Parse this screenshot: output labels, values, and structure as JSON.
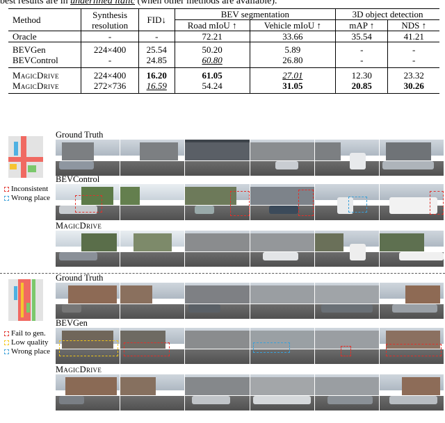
{
  "caption": {
    "text_pre": "best results are in ",
    "text_ul": "underlined italic",
    "text_post": " (when other methods are available)."
  },
  "table": {
    "headers": {
      "method": "Method",
      "synth_line1": "Synthesis",
      "synth_line2": "resolution",
      "fid": "FID↓",
      "bev_group": "BEV segmentation",
      "det_group": "3D object detection",
      "road": "Road mIoU ↑",
      "vehicle": "Vehicle mIoU ↑",
      "map": "mAP ↑",
      "nds": "NDS ↑"
    },
    "rows": [
      {
        "method": "Oracle",
        "res": "-",
        "fid": "-",
        "road": "72.21",
        "vehicle": "33.66",
        "map": "35.54",
        "nds": "41.21"
      },
      {
        "method": "BEVGen",
        "res": "224×400",
        "fid": "25.54",
        "road": "50.20",
        "vehicle": "5.89",
        "map": "-",
        "nds": "-"
      },
      {
        "method": "BEVControl",
        "res": "-",
        "fid": "24.85",
        "road": "60.80",
        "vehicle": "26.80",
        "map": "-",
        "nds": "-"
      },
      {
        "method": "MagicDrive",
        "res": "224×400",
        "fid": "16.20",
        "road": "61.05",
        "vehicle": "27.01",
        "map": "12.30",
        "nds": "23.32"
      },
      {
        "method": "MagicDrive",
        "res": "272×736",
        "fid": "16.59",
        "road": "54.24",
        "vehicle": "31.05",
        "map": "20.85",
        "nds": "30.26"
      }
    ]
  },
  "figure": {
    "top": {
      "gt_label": "Ground Truth",
      "cmp_label": "BEVControl",
      "ours_label": "MagicDrive",
      "legend": [
        "Inconsistent",
        "Wrong place"
      ]
    },
    "bottom": {
      "gt_label": "Ground Truth",
      "cmp_label": "BEVGen",
      "ours_label": "MagicDrive",
      "legend": [
        "Fail to gen.",
        "Low quality",
        "Wrong place"
      ]
    },
    "colors": {
      "red": "#e0312b",
      "yellow": "#f2c618",
      "blue": "#3aa0d8"
    }
  }
}
